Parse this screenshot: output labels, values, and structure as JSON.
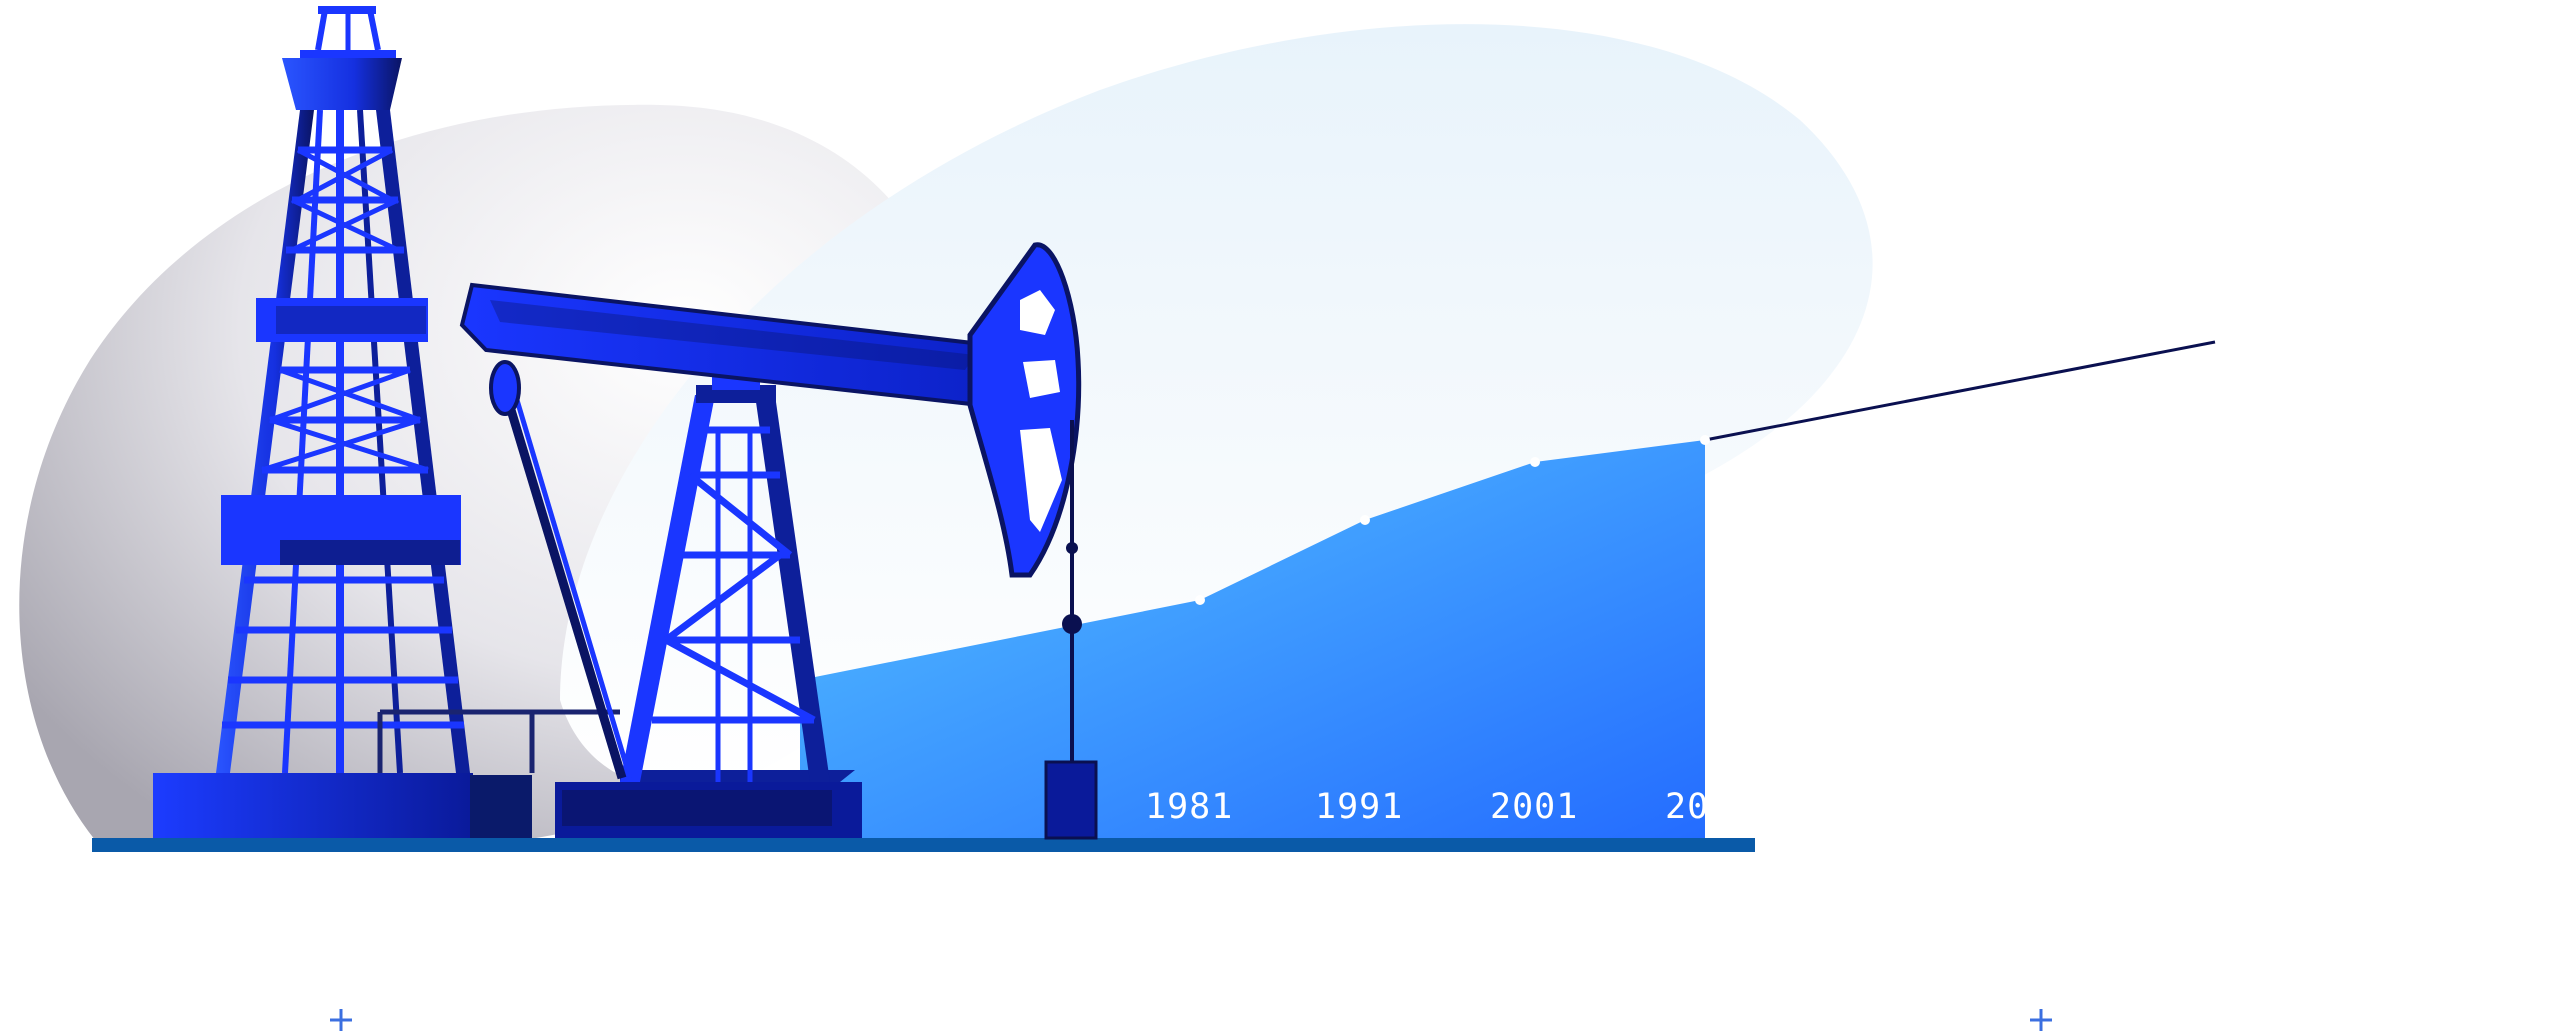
{
  "timeline": {
    "years": [
      "1981",
      "1991",
      "2001",
      "20"
    ]
  },
  "colors": {
    "accent": "#1f4cff",
    "area_light": "#4fb8ff",
    "area_dark": "#2a6dff",
    "ground": "#0a5aa8",
    "rig_dark": "#0a1463"
  },
  "icons": [
    "oil-derrick-icon",
    "pumpjack-icon",
    "plus-icon"
  ]
}
